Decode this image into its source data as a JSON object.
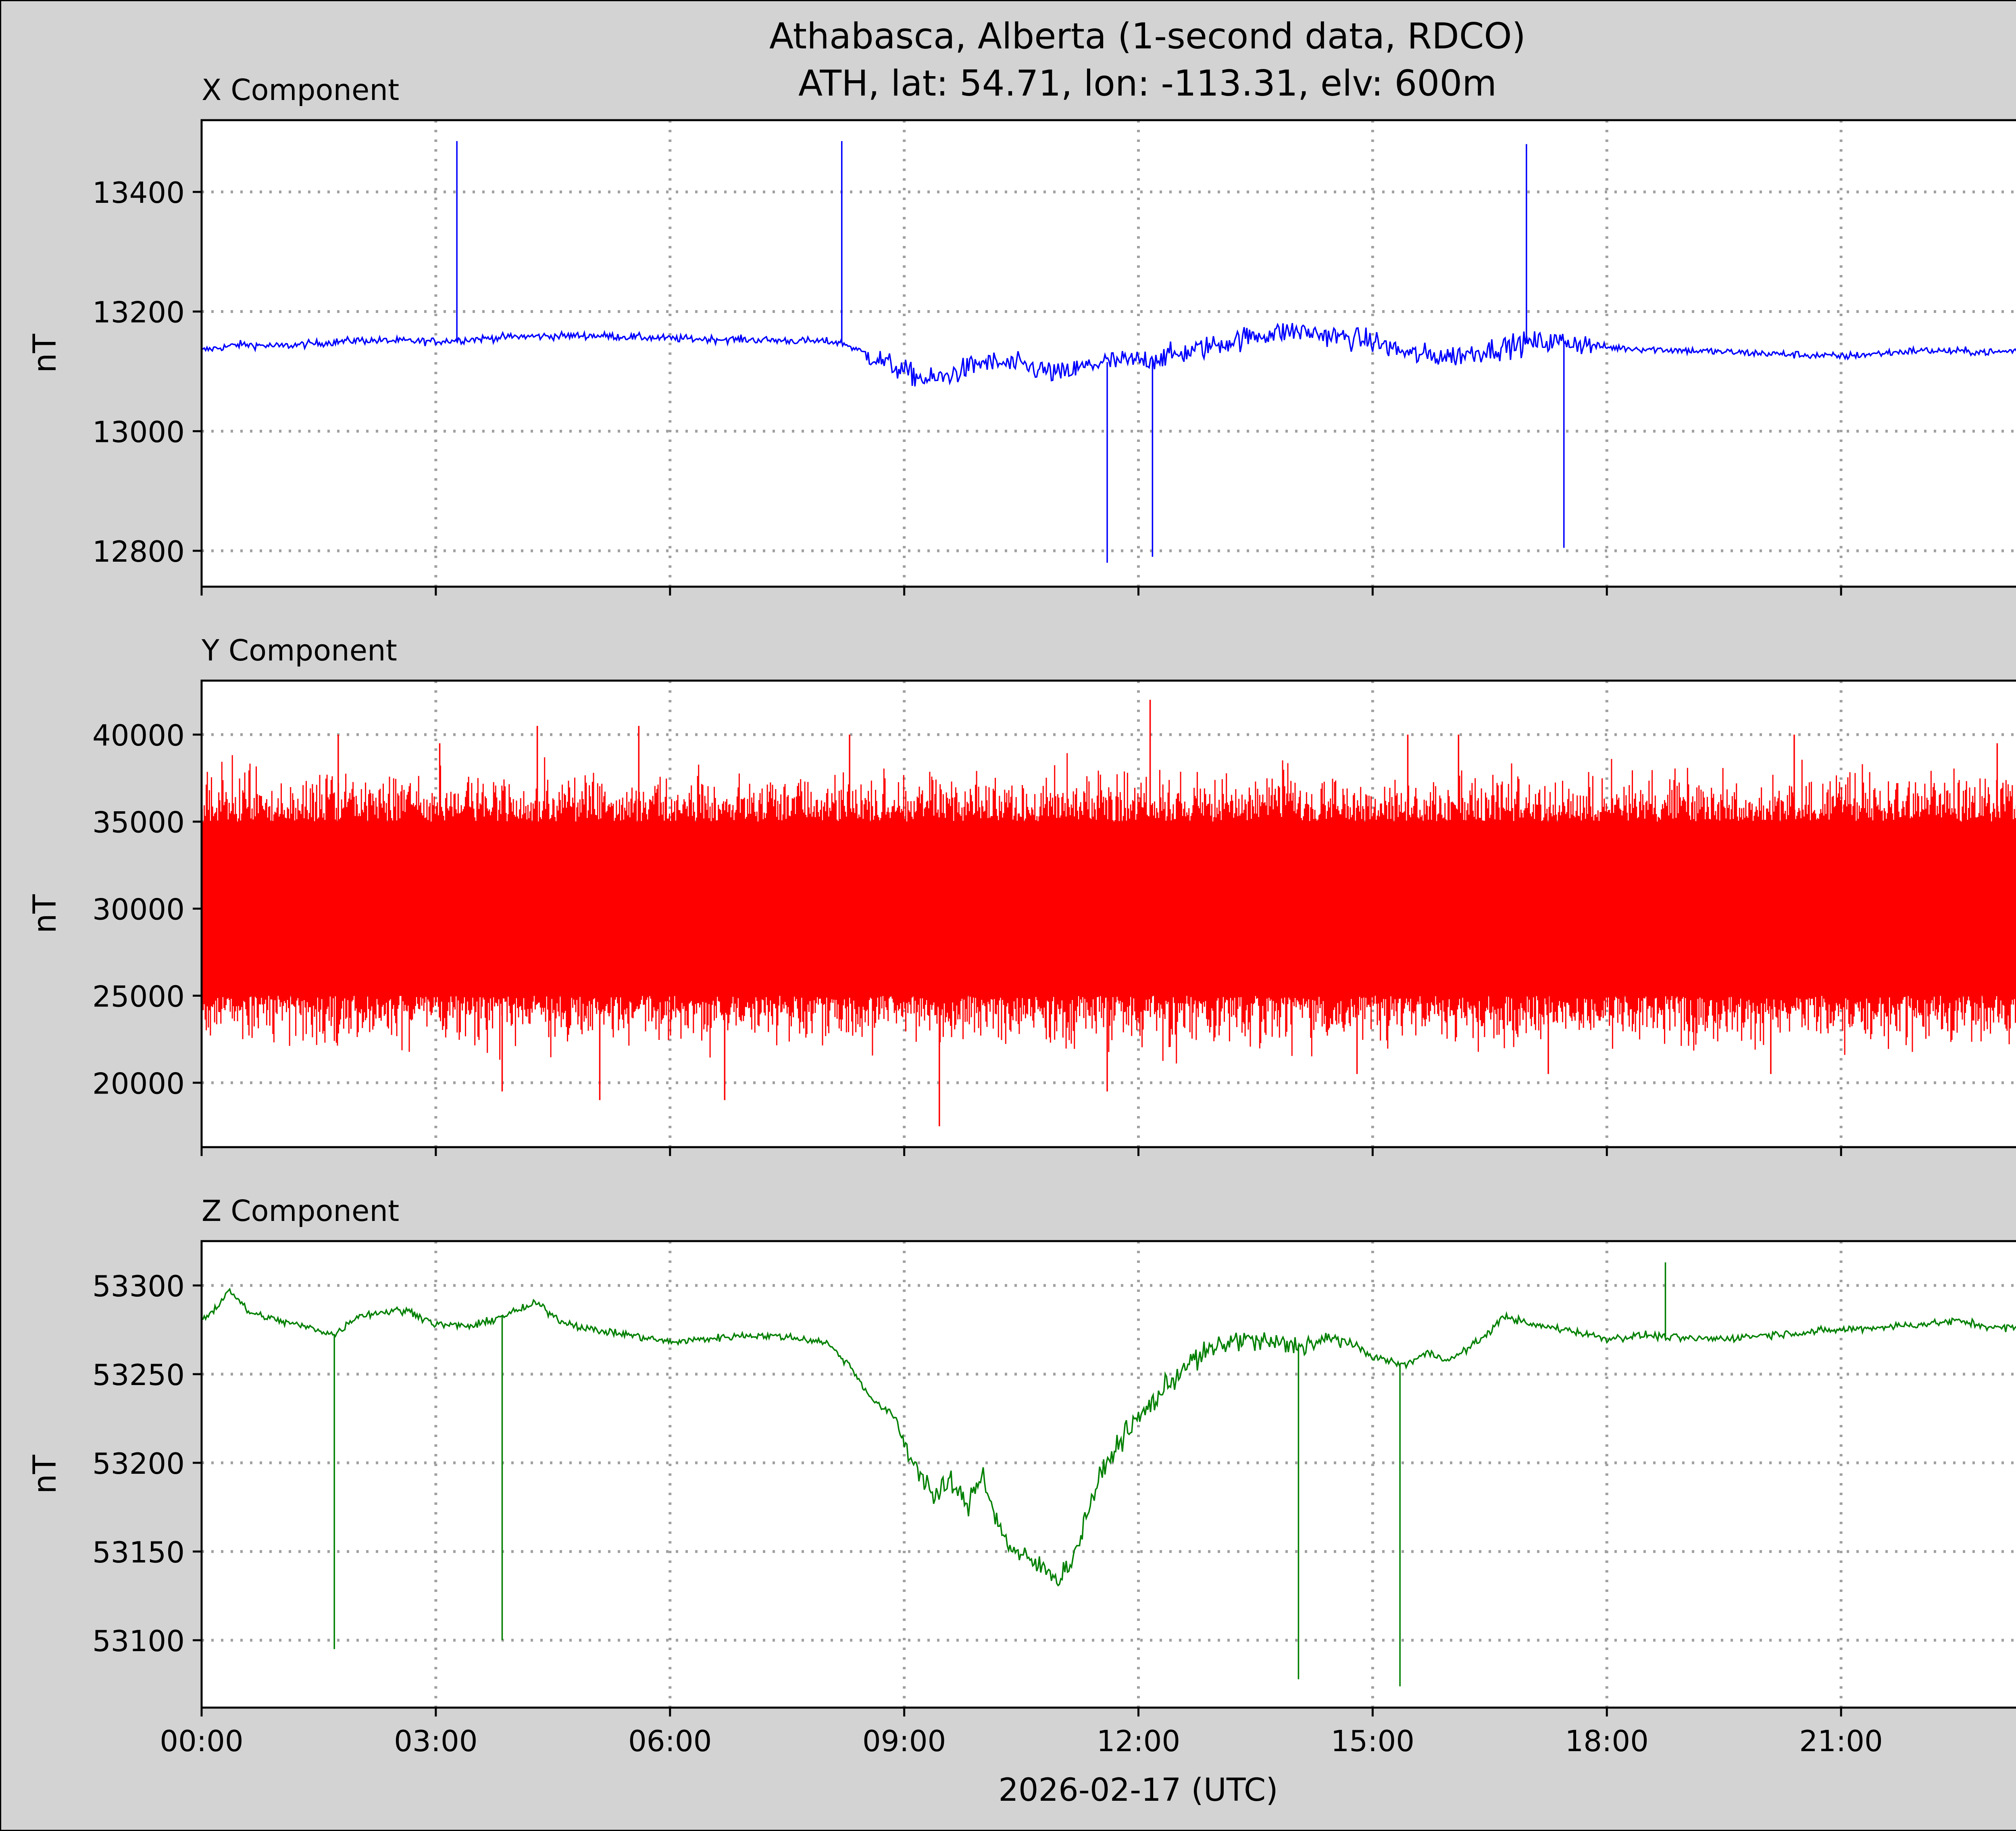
{
  "figure": {
    "title_line1": "Athabasca, Alberta (1-second data, RDCO)",
    "title_line2": "ATH, lat: 54.71, lon: -113.31, elv: 600m",
    "xlabel": "2026-02-17 (UTC)",
    "background_color": "#d3d3d3",
    "grid": true
  },
  "chart_data": [
    {
      "type": "line",
      "title": "X Component",
      "ylabel": "nT",
      "color": "#0000ff",
      "xlim": [
        0,
        24
      ],
      "ylim": [
        12740,
        13520
      ],
      "yticks": [
        12800,
        13000,
        13200,
        13400
      ],
      "xticks": [
        0,
        3,
        6,
        9,
        12,
        15,
        18,
        21
      ],
      "xtick_labels": [
        "00:00",
        "03:00",
        "06:00",
        "09:00",
        "12:00",
        "15:00",
        "18:00",
        "21:00"
      ],
      "x_unit": "hours UTC",
      "baseline": {
        "x": [
          0,
          0.5,
          1,
          2,
          3,
          4,
          5,
          6,
          7,
          8,
          8.2,
          8.5,
          9,
          9.3,
          9.5,
          10,
          10.5,
          11,
          11.5,
          12,
          12.5,
          13,
          13.5,
          14,
          15,
          15.5,
          16,
          17,
          17.5,
          18,
          19,
          20,
          21,
          22,
          23,
          24
        ],
        "y": [
          13135,
          13145,
          13142,
          13152,
          13150,
          13158,
          13160,
          13155,
          13153,
          13150,
          13148,
          13130,
          13100,
          13085,
          13090,
          13115,
          13110,
          13095,
          13115,
          13118,
          13128,
          13145,
          13160,
          13168,
          13150,
          13128,
          13125,
          13148,
          13150,
          13140,
          13135,
          13130,
          13125,
          13135,
          13132,
          13145
        ]
      },
      "spikes": [
        {
          "x": 3.27,
          "y": 13485
        },
        {
          "x": 8.2,
          "y": 13485
        },
        {
          "x": 11.6,
          "y": 12780
        },
        {
          "x": 12.18,
          "y": 12790
        },
        {
          "x": 16.97,
          "y": 13480
        },
        {
          "x": 17.45,
          "y": 12805
        }
      ]
    },
    {
      "type": "line",
      "title": "Y Component",
      "ylabel": "nT",
      "color": "#ff0000",
      "xlim": [
        0,
        24
      ],
      "ylim": [
        16300,
        43100
      ],
      "yticks": [
        20000,
        25000,
        30000,
        35000,
        40000
      ],
      "xticks": [
        0,
        3,
        6,
        9,
        12,
        15,
        18,
        21
      ],
      "x_unit": "hours UTC",
      "noise_center": 29500,
      "core_band": [
        25000,
        35000
      ],
      "peaks_high": [
        {
          "x": 1.75,
          "y": 40000
        },
        {
          "x": 3.05,
          "y": 39500
        },
        {
          "x": 4.3,
          "y": 40500
        },
        {
          "x": 5.6,
          "y": 40500
        },
        {
          "x": 8.3,
          "y": 40000
        },
        {
          "x": 12.15,
          "y": 42000
        },
        {
          "x": 15.45,
          "y": 40000
        },
        {
          "x": 16.1,
          "y": 40000
        },
        {
          "x": 20.4,
          "y": 40000
        },
        {
          "x": 23.0,
          "y": 39500
        }
      ],
      "peaks_low": [
        {
          "x": 3.85,
          "y": 19500
        },
        {
          "x": 5.1,
          "y": 19000
        },
        {
          "x": 6.7,
          "y": 19000
        },
        {
          "x": 9.45,
          "y": 17500
        },
        {
          "x": 11.6,
          "y": 19500
        },
        {
          "x": 14.8,
          "y": 20500
        },
        {
          "x": 17.25,
          "y": 20500
        },
        {
          "x": 20.1,
          "y": 20500
        }
      ]
    },
    {
      "type": "line",
      "title": "Z Component",
      "ylabel": "nT",
      "color": "#008000",
      "xlim": [
        0,
        24
      ],
      "ylim": [
        53062,
        53325
      ],
      "yticks": [
        53100,
        53150,
        53200,
        53250,
        53300
      ],
      "xticks": [
        0,
        3,
        6,
        9,
        12,
        15,
        18,
        21
      ],
      "xtick_labels": [
        "00:00",
        "03:00",
        "06:00",
        "09:00",
        "12:00",
        "15:00",
        "18:00",
        "21:00"
      ],
      "x_unit": "hours UTC",
      "baseline": {
        "x": [
          0,
          0.2,
          0.35,
          0.6,
          1,
          1.5,
          1.7,
          2,
          2.5,
          2.7,
          3,
          3.5,
          3.8,
          4,
          4.3,
          4.6,
          5,
          5.5,
          6,
          6.5,
          7,
          7.5,
          8,
          8.3,
          8.6,
          8.9,
          9,
          9.2,
          9.4,
          9.6,
          9.8,
          10,
          10.2,
          10.4,
          10.6,
          10.8,
          11,
          11.2,
          11.4,
          11.6,
          11.8,
          12,
          12.3,
          12.6,
          13,
          13.3,
          13.6,
          14,
          14.3,
          14.6,
          15,
          15.4,
          15.7,
          16,
          16.4,
          16.7,
          17,
          17.5,
          18,
          18.5,
          19,
          19.5,
          20,
          21,
          22,
          22.5,
          23,
          24
        ],
        "y": [
          53280,
          53288,
          53298,
          53285,
          53280,
          53275,
          53272,
          53283,
          53286,
          53285,
          53278,
          53277,
          53282,
          53285,
          53290,
          53280,
          53275,
          53272,
          53268,
          53270,
          53272,
          53271,
          53268,
          53255,
          53235,
          53225,
          53210,
          53195,
          53180,
          53190,
          53175,
          53195,
          53165,
          53150,
          53145,
          53140,
          53135,
          53150,
          53180,
          53200,
          53215,
          53225,
          53240,
          53255,
          53265,
          53270,
          53268,
          53266,
          53268,
          53270,
          53260,
          53255,
          53262,
          53258,
          53270,
          53283,
          53278,
          53275,
          53270,
          53272,
          53270,
          53270,
          53272,
          53275,
          53278,
          53280,
          53276,
          53278
        ]
      },
      "spikes": [
        {
          "x": 1.7,
          "y": 53095
        },
        {
          "x": 3.85,
          "y": 53100
        },
        {
          "x": 14.05,
          "y": 53078
        },
        {
          "x": 15.35,
          "y": 53074
        },
        {
          "x": 18.75,
          "y": 53313
        }
      ]
    }
  ]
}
